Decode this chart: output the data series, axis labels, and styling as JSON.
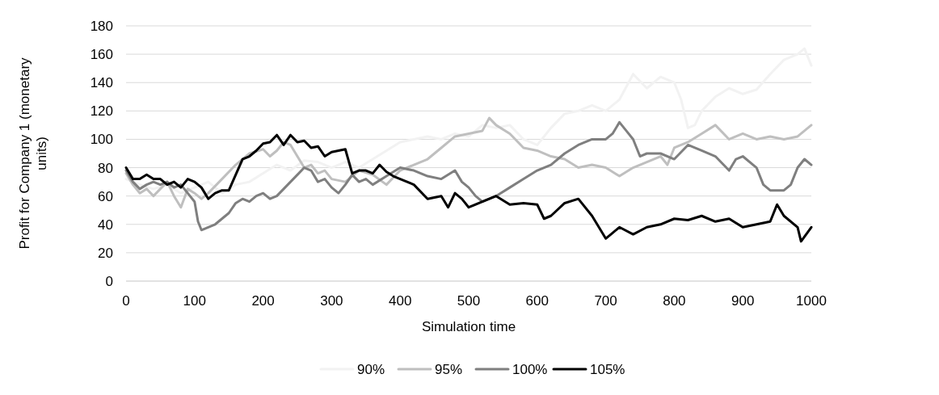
{
  "chart_data": {
    "type": "line",
    "xlabel": "Simulation time",
    "ylabel": "Profit for Company 1 (monetary units)",
    "xlim": [
      0,
      1000
    ],
    "xticks": [
      0,
      100,
      200,
      300,
      400,
      500,
      600,
      700,
      800,
      900,
      1000
    ],
    "ylim": [
      0,
      180
    ],
    "yticks": [
      0,
      20,
      40,
      60,
      80,
      100,
      120,
      140,
      160,
      180
    ],
    "grid": "y",
    "legend": "bottom",
    "line_style": "solid",
    "marker": "none",
    "series": [
      {
        "name": "90%",
        "color": "#f2f2f2",
        "x": [
          0,
          20,
          40,
          60,
          80,
          100,
          120,
          140,
          160,
          180,
          200,
          220,
          240,
          260,
          280,
          300,
          320,
          340,
          360,
          380,
          400,
          420,
          440,
          460,
          480,
          500,
          520,
          540,
          560,
          580,
          600,
          620,
          640,
          660,
          680,
          700,
          720,
          740,
          760,
          780,
          800,
          810,
          820,
          830,
          840,
          860,
          880,
          900,
          920,
          940,
          960,
          980,
          990,
          1000
        ],
        "values": [
          72,
          68,
          65,
          68,
          62,
          66,
          70,
          62,
          68,
          70,
          76,
          82,
          78,
          85,
          84,
          80,
          84,
          80,
          86,
          92,
          98,
          100,
          102,
          100,
          104,
          102,
          110,
          108,
          110,
          100,
          96,
          108,
          118,
          120,
          124,
          120,
          128,
          146,
          136,
          144,
          140,
          128,
          108,
          110,
          120,
          130,
          136,
          132,
          135,
          146,
          156,
          160,
          164,
          152
        ]
      },
      {
        "name": "95%",
        "color": "#bfbfbf",
        "x": [
          0,
          10,
          20,
          30,
          40,
          50,
          60,
          70,
          80,
          90,
          100,
          110,
          120,
          140,
          160,
          180,
          200,
          210,
          220,
          230,
          240,
          250,
          260,
          270,
          280,
          290,
          300,
          320,
          340,
          360,
          380,
          400,
          420,
          440,
          460,
          480,
          500,
          520,
          530,
          540,
          560,
          580,
          600,
          620,
          640,
          660,
          680,
          700,
          720,
          740,
          760,
          780,
          790,
          800,
          820,
          840,
          860,
          880,
          900,
          920,
          940,
          960,
          980,
          1000
        ],
        "values": [
          76,
          68,
          62,
          65,
          60,
          65,
          70,
          60,
          52,
          65,
          62,
          58,
          62,
          72,
          82,
          90,
          93,
          88,
          92,
          98,
          96,
          88,
          80,
          82,
          76,
          78,
          72,
          70,
          78,
          75,
          68,
          78,
          82,
          86,
          94,
          102,
          104,
          106,
          115,
          110,
          104,
          94,
          92,
          88,
          86,
          80,
          82,
          80,
          74,
          80,
          84,
          88,
          82,
          94,
          98,
          104,
          110,
          100,
          104,
          100,
          102,
          100,
          102,
          110
        ]
      },
      {
        "name": "100%",
        "color": "#7f7f7f",
        "x": [
          0,
          10,
          20,
          30,
          40,
          50,
          60,
          70,
          80,
          90,
          100,
          105,
          110,
          120,
          130,
          140,
          150,
          160,
          170,
          180,
          190,
          200,
          210,
          220,
          230,
          240,
          250,
          260,
          270,
          280,
          290,
          300,
          310,
          320,
          330,
          340,
          350,
          360,
          380,
          400,
          420,
          440,
          460,
          480,
          490,
          500,
          510,
          520,
          530,
          540,
          560,
          580,
          600,
          620,
          640,
          660,
          680,
          700,
          710,
          720,
          730,
          740,
          750,
          760,
          780,
          800,
          820,
          840,
          860,
          880,
          890,
          900,
          920,
          930,
          940,
          960,
          970,
          980,
          990,
          1000
        ],
        "values": [
          78,
          70,
          65,
          68,
          70,
          68,
          70,
          66,
          68,
          62,
          56,
          42,
          36,
          38,
          40,
          44,
          48,
          55,
          58,
          56,
          60,
          62,
          58,
          60,
          65,
          70,
          75,
          80,
          78,
          70,
          72,
          66,
          62,
          68,
          75,
          70,
          72,
          68,
          74,
          80,
          78,
          74,
          72,
          78,
          70,
          66,
          60,
          56,
          58,
          60,
          66,
          72,
          78,
          82,
          90,
          96,
          100,
          100,
          104,
          112,
          106,
          100,
          88,
          90,
          90,
          86,
          96,
          92,
          88,
          78,
          86,
          88,
          80,
          68,
          64,
          64,
          68,
          80,
          86,
          82
        ]
      },
      {
        "name": "105%",
        "color": "#000000",
        "x": [
          0,
          10,
          20,
          30,
          40,
          50,
          60,
          70,
          80,
          90,
          100,
          110,
          120,
          130,
          140,
          150,
          160,
          170,
          180,
          190,
          200,
          210,
          220,
          230,
          240,
          250,
          260,
          270,
          280,
          290,
          300,
          310,
          320,
          330,
          340,
          350,
          360,
          370,
          380,
          390,
          400,
          420,
          440,
          460,
          470,
          480,
          490,
          500,
          520,
          540,
          560,
          580,
          600,
          610,
          620,
          640,
          660,
          680,
          700,
          710,
          720,
          740,
          760,
          780,
          800,
          820,
          840,
          860,
          880,
          900,
          920,
          940,
          950,
          960,
          980,
          985,
          1000
        ],
        "values": [
          80,
          72,
          72,
          75,
          72,
          72,
          68,
          70,
          66,
          72,
          70,
          66,
          58,
          62,
          64,
          64,
          75,
          86,
          88,
          92,
          97,
          98,
          103,
          96,
          103,
          98,
          99,
          94,
          95,
          88,
          91,
          92,
          93,
          76,
          78,
          78,
          76,
          82,
          77,
          74,
          72,
          68,
          58,
          60,
          52,
          62,
          58,
          52,
          56,
          60,
          54,
          55,
          54,
          44,
          46,
          55,
          58,
          46,
          30,
          34,
          38,
          33,
          38,
          40,
          44,
          43,
          46,
          42,
          44,
          38,
          40,
          42,
          54,
          46,
          38,
          28,
          38
        ]
      }
    ]
  }
}
